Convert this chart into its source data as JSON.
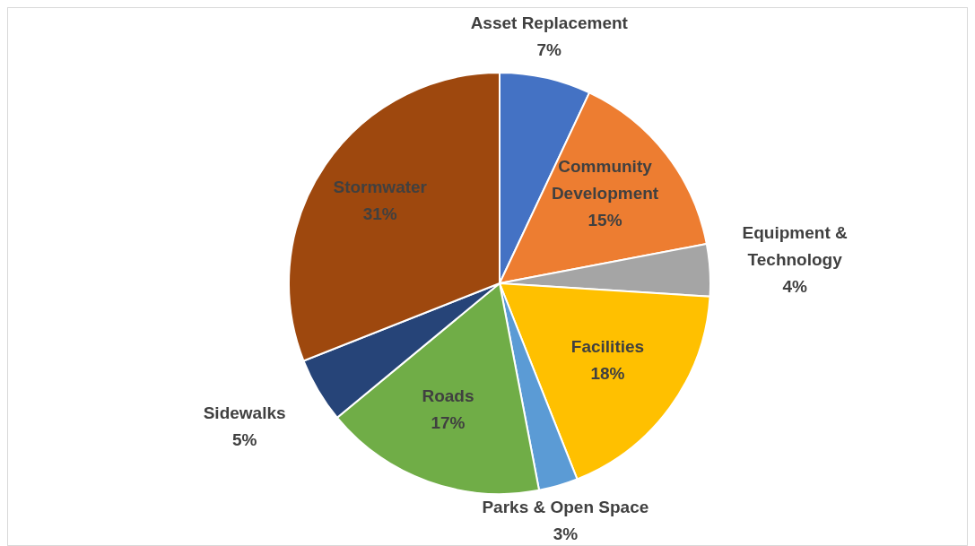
{
  "chart_data": {
    "type": "pie",
    "categories": [
      "Asset Replacement",
      "Community Development",
      "Equipment & Technology",
      "Facilities",
      "Parks & Open Space",
      "Roads",
      "Sidewalks",
      "Stormwater"
    ],
    "values": [
      7,
      15,
      4,
      18,
      3,
      17,
      5,
      31
    ],
    "value_labels": [
      "7%",
      "15%",
      "4%",
      "18%",
      "3%",
      "17%",
      "5%",
      "31%"
    ],
    "colors": [
      "#4472c4",
      "#ed7d31",
      "#a5a5a5",
      "#ffc000",
      "#5b9bd5",
      "#70ad47",
      "#264478",
      "#9e480e"
    ],
    "legend": false
  }
}
